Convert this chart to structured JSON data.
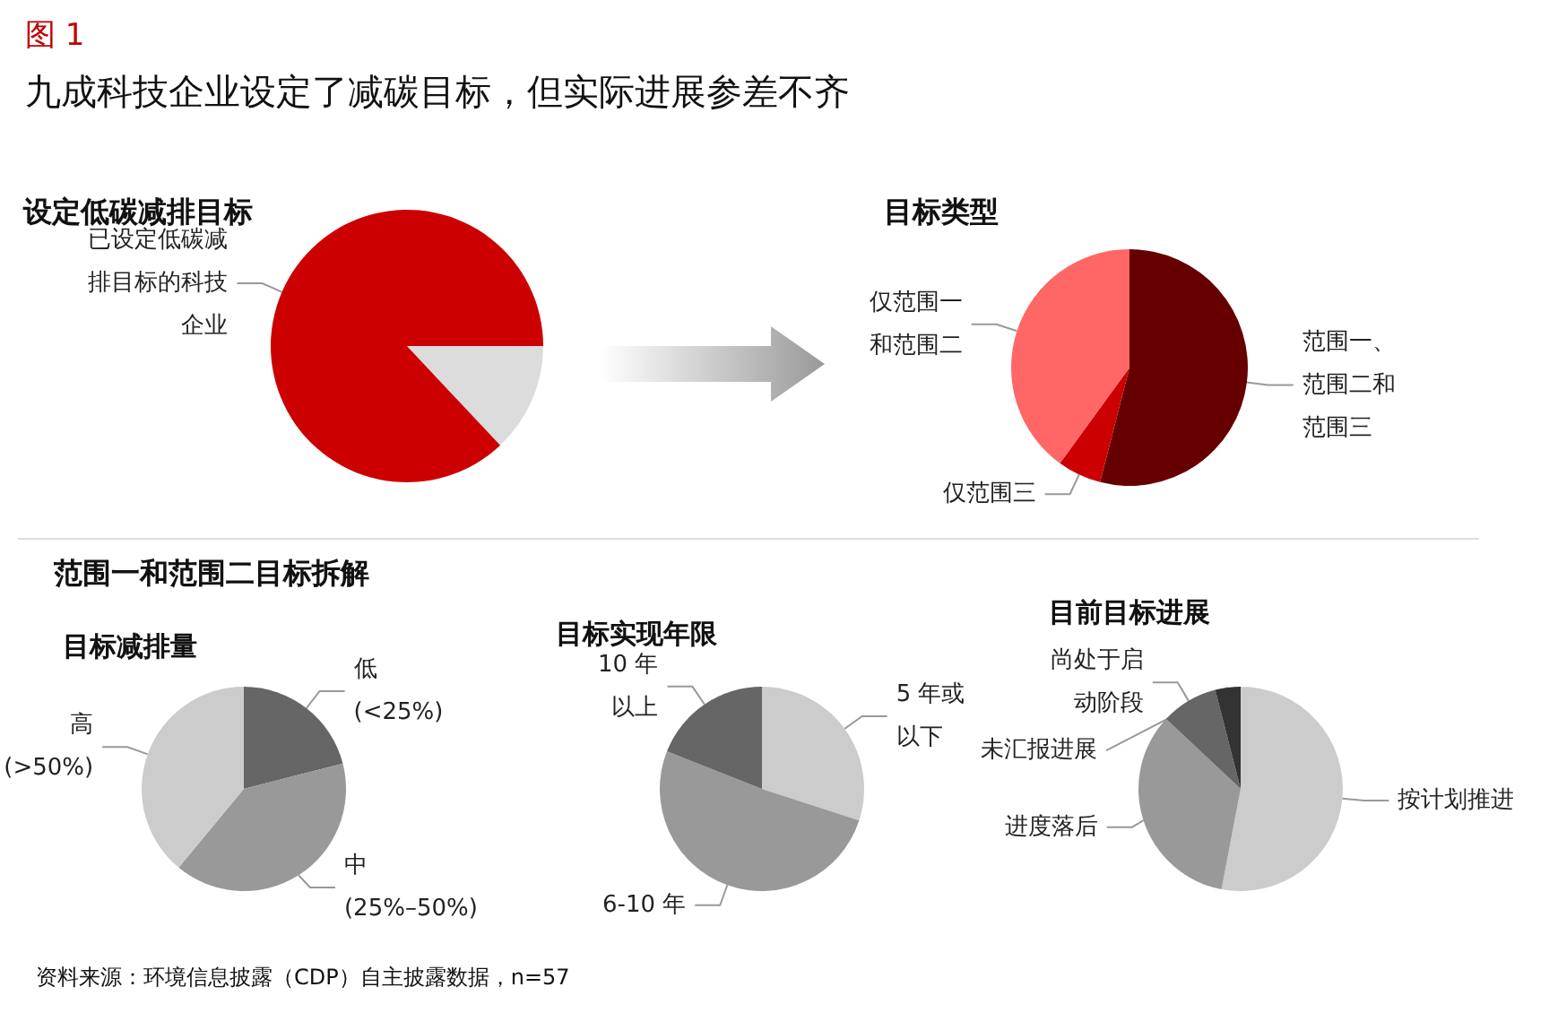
{
  "chart_data": [
    {
      "type": "other",
      "title": "九成科技企业设定了减碳目标，但实际进展参差不齐",
      "annotations": [
        "图 1",
        "范围一和范围二目标拆解",
        "资料来源：环境信息披露（CDP）自主披露数据，n=57"
      ]
    },
    {
      "type": "pie",
      "title": "设定低碳减排目标",
      "categories": [
        null,
        "已设定低碳减排目标的科技企业"
      ],
      "values": [
        13,
        87
      ],
      "colors": [
        "#dcdcdc",
        "#cc0000"
      ]
    },
    {
      "type": "pie",
      "title": "目标类型",
      "categories": [
        "范围一、范围二和范围三",
        "仅范围三",
        "仅范围一和范围二"
      ],
      "values": [
        54,
        6,
        40
      ],
      "colors": [
        "#660000",
        "#cc0000",
        "#ff6666"
      ]
    },
    {
      "type": "pie",
      "title": "目标减排量",
      "categories": [
        "低\n(<25%)",
        "中\n(25%–50%)",
        "高\n(>50%)"
      ],
      "values": [
        21,
        40,
        39
      ],
      "colors": [
        "#666666",
        "#999999",
        "#cccccc"
      ]
    },
    {
      "type": "pie",
      "title": "目标实现年限",
      "categories": [
        "5 年或以下",
        "6-10 年",
        "10 年以上"
      ],
      "values": [
        30,
        51,
        19
      ],
      "colors": [
        "#cccccc",
        "#999999",
        "#666666"
      ]
    },
    {
      "type": "pie",
      "title": "目前目标进展",
      "categories": [
        "按计划推进",
        "进度落后",
        "尚处于启动阶段",
        "未汇报进展"
      ],
      "values": [
        53,
        34,
        9,
        4
      ],
      "colors": [
        "#cccccc",
        "#999999",
        "#666666",
        "#333333"
      ]
    }
  ]
}
